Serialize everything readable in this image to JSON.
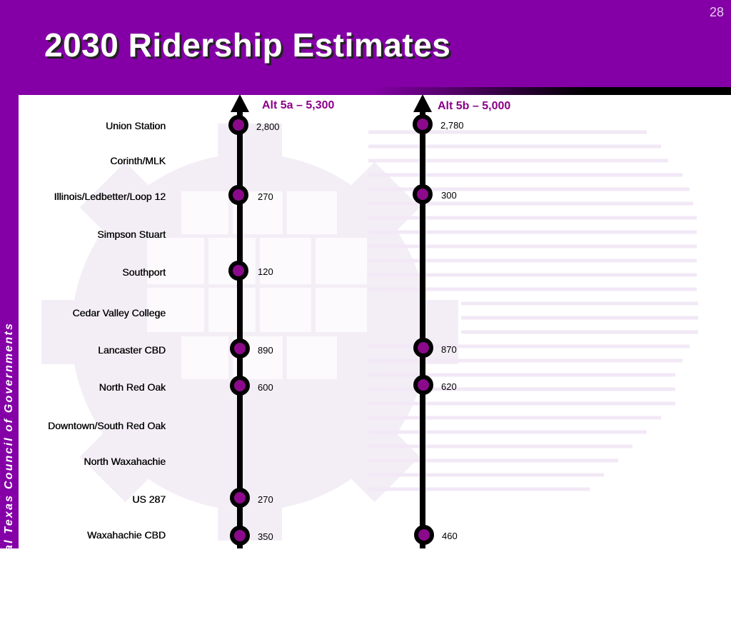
{
  "slide": {
    "page_number": "28",
    "title": "2030 Ridership Estimates",
    "sidebar_text": "North Central Texas Council of Governments"
  },
  "colors": {
    "header": "#8400a6",
    "station_fill": "#8b0a8b",
    "route_title": "#8b0089",
    "line": "#000000"
  },
  "routes": [
    {
      "title": "Alt 5a – 5,300"
    },
    {
      "title": "Alt 5b – 5,000"
    }
  ],
  "stations": [
    {
      "name": "Union Station",
      "alt5a": "2,800",
      "alt5b": "2,780"
    },
    {
      "name": "Corinth/MLK",
      "alt5a": null,
      "alt5b": null
    },
    {
      "name": "Illinois/Ledbetter/Loop 12",
      "alt5a": "270",
      "alt5b": "300"
    },
    {
      "name": "Simpson Stuart",
      "alt5a": null,
      "alt5b": null
    },
    {
      "name": "Southport",
      "alt5a": "120",
      "alt5b": null
    },
    {
      "name": "Cedar Valley College",
      "alt5a": null,
      "alt5b": null
    },
    {
      "name": "Lancaster CBD",
      "alt5a": "890",
      "alt5b": "870"
    },
    {
      "name": "North Red Oak",
      "alt5a": "600",
      "alt5b": "620"
    },
    {
      "name": "Downtown/South Red Oak",
      "alt5a": null,
      "alt5b": null
    },
    {
      "name": "North Waxahachie",
      "alt5a": null,
      "alt5b": null
    },
    {
      "name": "US 287",
      "alt5a": "270",
      "alt5b": null
    },
    {
      "name": "Waxahachie CBD",
      "alt5a": "350",
      "alt5b": "460"
    }
  ]
}
